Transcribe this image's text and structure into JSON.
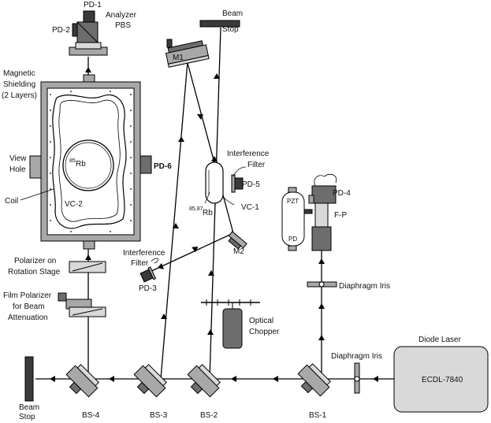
{
  "colors": {
    "beam": "#000000",
    "component_light": "#d9d9d9",
    "component_mid": "#a8a8a8",
    "component_dark": "#3a3a3a"
  },
  "labels": {
    "pd1": "PD-1",
    "analyzer_line1": "Analyzer",
    "analyzer_line2": "PBS",
    "pd2": "PD-2",
    "beam_stop_top_line1": "Beam",
    "beam_stop_top_line2": "Stop",
    "m1": "M1",
    "magnetic_line1": "Magnetic",
    "magnetic_line2": "Shielding",
    "magnetic_line3": "(2 Layers)",
    "view_line1": "View",
    "view_line2": "Hole",
    "rb85_mass": "85",
    "rb85_symbol": "Rb",
    "pd6": "PD-6",
    "coil": "Coil",
    "vc2": "VC-2",
    "interference_top_line1": "Interference",
    "interference_top_line2": "Filter",
    "pd5": "PD-5",
    "vc1": "VC-1",
    "rb_mix_mass": "85,87",
    "rb_mix_symbol": "Rb",
    "pd4": "PD-4",
    "pzt": "PZT",
    "pd": "PD",
    "fp": "F-P",
    "m2": "M2",
    "interference_left_line1": "Interference",
    "interference_left_line2": "Filter",
    "pd3": "PD-3",
    "polarizer_line1": "Polarizer on",
    "polarizer_line2": "Rotation Stage",
    "film_line1": "Film Polarizer",
    "film_line2": "for Beam",
    "film_line3": "Attenuation",
    "diaphragm_upper": "Diaphragm Iris",
    "optical_line1": "Optical",
    "optical_line2": "Chopper",
    "diaphragm_lower": "Diaphragm Iris",
    "diode_laser": "Diode Laser",
    "ecdl": "ECDL-7840",
    "beam_stop_left_line1": "Beam",
    "beam_stop_left_line2": "Stop",
    "bs4": "BS-4",
    "bs3": "BS-3",
    "bs2": "BS-2",
    "bs1": "BS-1"
  }
}
